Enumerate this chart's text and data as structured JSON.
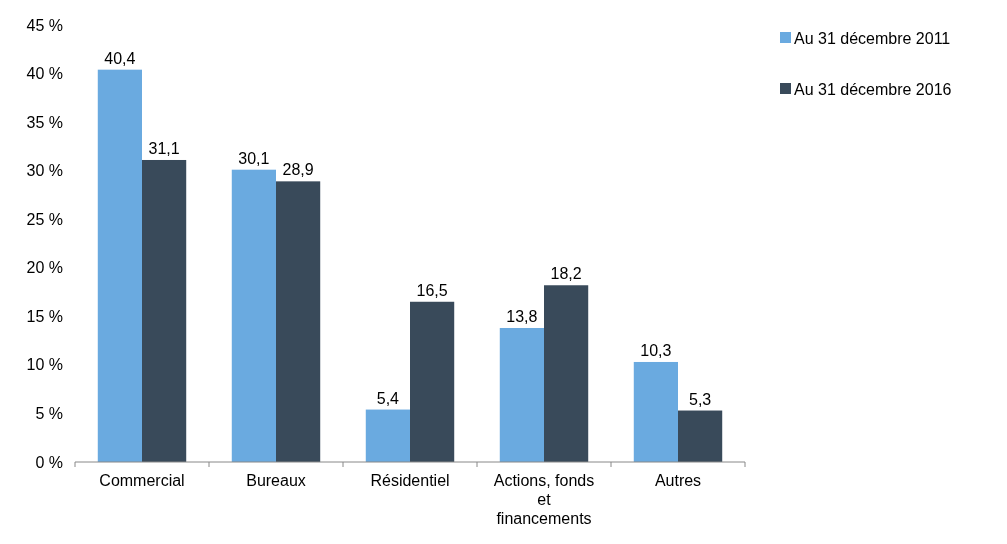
{
  "chart_data": {
    "type": "bar",
    "categories": [
      "Commercial",
      "Bureaux",
      "Résidentiel",
      "Actions, fonds et financements",
      "Autres"
    ],
    "series": [
      {
        "name": "Au 31 décembre 2011",
        "color": "#6aaae0",
        "values": [
          40.4,
          30.1,
          5.4,
          13.8,
          10.3
        ],
        "value_labels": [
          "40,4",
          "30,1",
          "5,4",
          "13,8",
          "10,3"
        ]
      },
      {
        "name": "Au 31 décembre 2016",
        "color": "#394a5a",
        "values": [
          31.1,
          28.9,
          16.5,
          18.2,
          5.3
        ],
        "value_labels": [
          "31,1",
          "28,9",
          "16,5",
          "18,2",
          "5,3"
        ]
      }
    ],
    "ylim": [
      0,
      45
    ],
    "yticks": [
      {
        "value": 0,
        "label": "0 %"
      },
      {
        "value": 5,
        "label": "5 %"
      },
      {
        "value": 10,
        "label": "10 %"
      },
      {
        "value": 15,
        "label": "15 %"
      },
      {
        "value": 20,
        "label": "20 %"
      },
      {
        "value": 25,
        "label": "25 %"
      },
      {
        "value": 30,
        "label": "30 %"
      },
      {
        "value": 35,
        "label": "35 %"
      },
      {
        "value": 40,
        "label": "40 %"
      },
      {
        "value": 45,
        "label": "45 %"
      }
    ],
    "grid": false,
    "legend": "top right"
  }
}
